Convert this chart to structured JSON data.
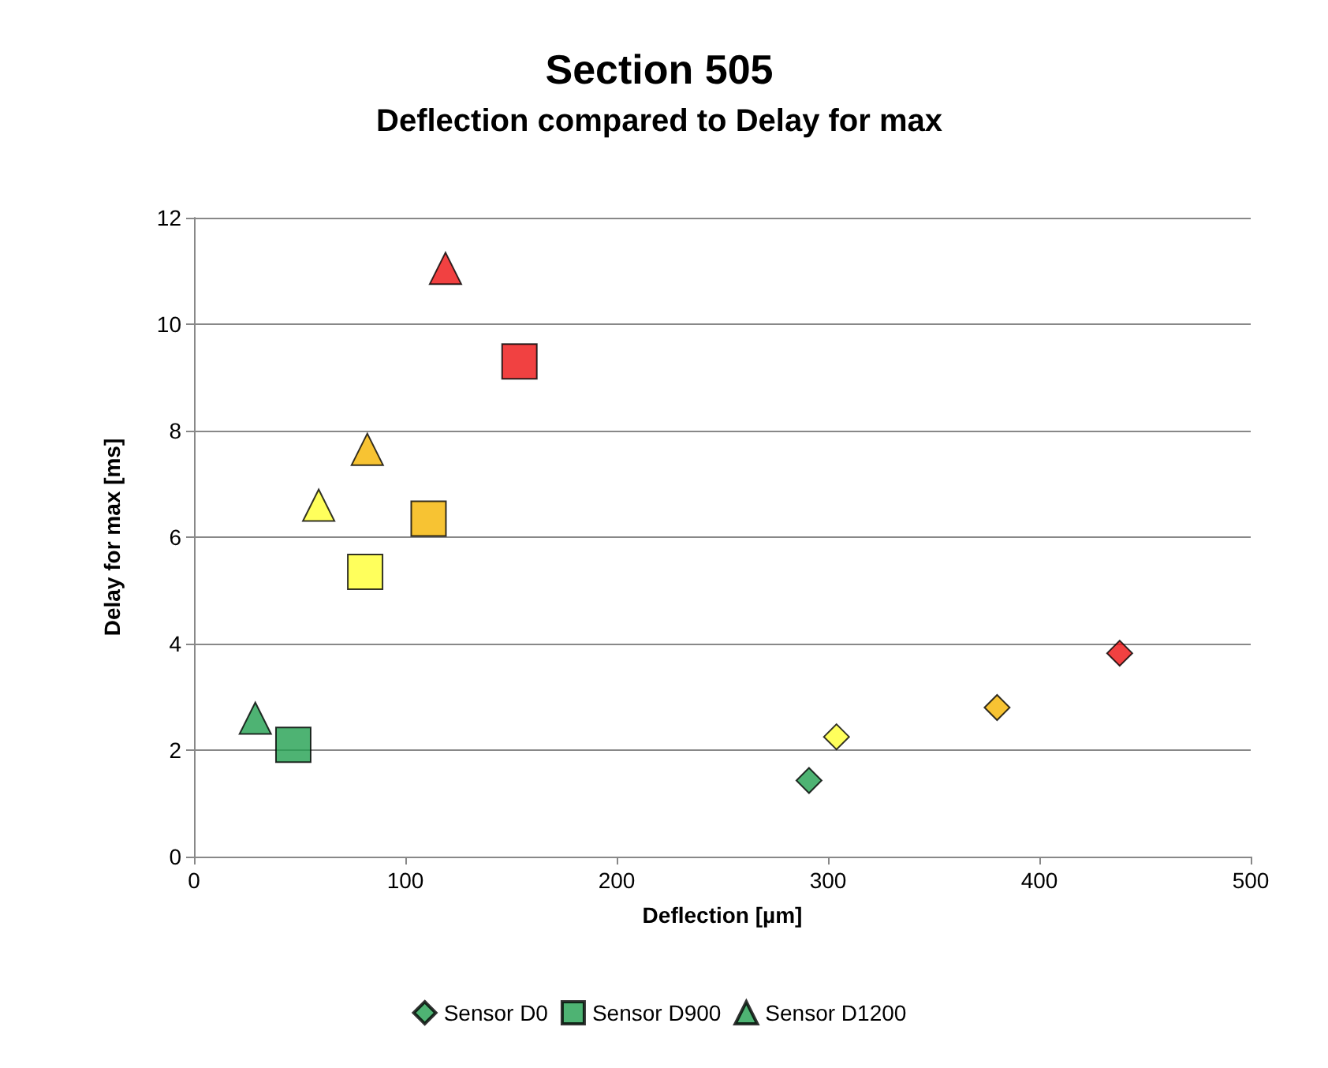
{
  "chart_data": {
    "type": "scatter",
    "title": "Section 505",
    "subtitle": "Deflection compared to Delay for max",
    "xlabel": "Deflection [µm]",
    "ylabel": "Delay for max [ms]",
    "xlim": [
      0,
      500
    ],
    "xticks": [
      0,
      100,
      200,
      300,
      400,
      500
    ],
    "ylim": [
      0,
      12
    ],
    "yticks": [
      0,
      2,
      4,
      6,
      8,
      10,
      12
    ],
    "grid": "y",
    "legend": "bottom",
    "series": [
      {
        "name": "Sensor D0",
        "marker": "diamond",
        "color": "#22a050",
        "x": [
          291,
          304,
          380,
          438
        ],
        "values": [
          1.43,
          2.25,
          2.8,
          3.82
        ],
        "colors": [
          "#22a050",
          "#ffff33",
          "#f5b400",
          "#ee1111"
        ]
      },
      {
        "name": "Sensor D900",
        "marker": "square",
        "color": "#22a050",
        "x": [
          47,
          81,
          111,
          154
        ],
        "values": [
          2.1,
          5.35,
          6.35,
          9.3
        ],
        "colors": [
          "#22a050",
          "#ffff33",
          "#f5b400",
          "#ee1111"
        ]
      },
      {
        "name": "Sensor D1200",
        "marker": "triangle",
        "color": "#22a050",
        "x": [
          29,
          59,
          82,
          119
        ],
        "values": [
          2.6,
          6.6,
          7.65,
          11.05
        ],
        "colors": [
          "#22a050",
          "#ffff33",
          "#f5b400",
          "#ee1111"
        ]
      }
    ]
  }
}
